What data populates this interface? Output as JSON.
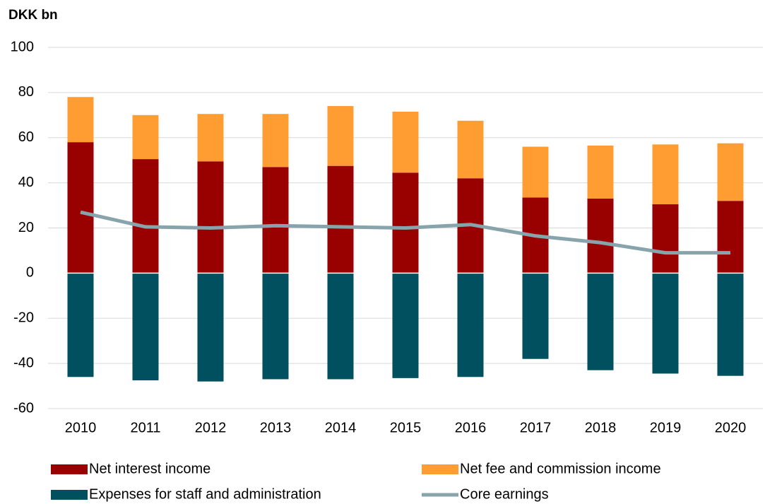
{
  "chart_data": {
    "type": "stacked_bar",
    "title": "DKK bn",
    "categories": [
      "2010",
      "2011",
      "2012",
      "2013",
      "2014",
      "2015",
      "2016",
      "2017",
      "2018",
      "2019",
      "2020"
    ],
    "series": [
      {
        "name": "Net interest income",
        "color": "#990000",
        "type": "bar",
        "values": [
          58,
          50.5,
          49.5,
          47,
          47.5,
          44.5,
          42,
          33.5,
          33,
          30.5,
          32
        ]
      },
      {
        "name": "Net fee and commission income",
        "color": "#ff9d33",
        "type": "bar",
        "values": [
          20,
          19.5,
          21,
          23.5,
          26.5,
          27,
          25.5,
          22.5,
          23.5,
          26.5,
          25.5
        ]
      },
      {
        "name": "Expenses for staff and administration",
        "color": "#00505f",
        "type": "bar",
        "values": [
          -46,
          -47.5,
          -48,
          -47,
          -47,
          -46.5,
          -46,
          -38,
          -43,
          -44.5,
          -45.5
        ]
      },
      {
        "name": "Core earnings",
        "color": "#87a3ab",
        "type": "line",
        "values": [
          27,
          20.5,
          20,
          21,
          20.5,
          20,
          21.5,
          16.5,
          13.5,
          9,
          9
        ]
      }
    ],
    "ylim": [
      -60,
      100
    ],
    "yticks": [
      -60,
      -40,
      -20,
      0,
      20,
      40,
      60,
      80,
      100
    ],
    "grid": true
  }
}
